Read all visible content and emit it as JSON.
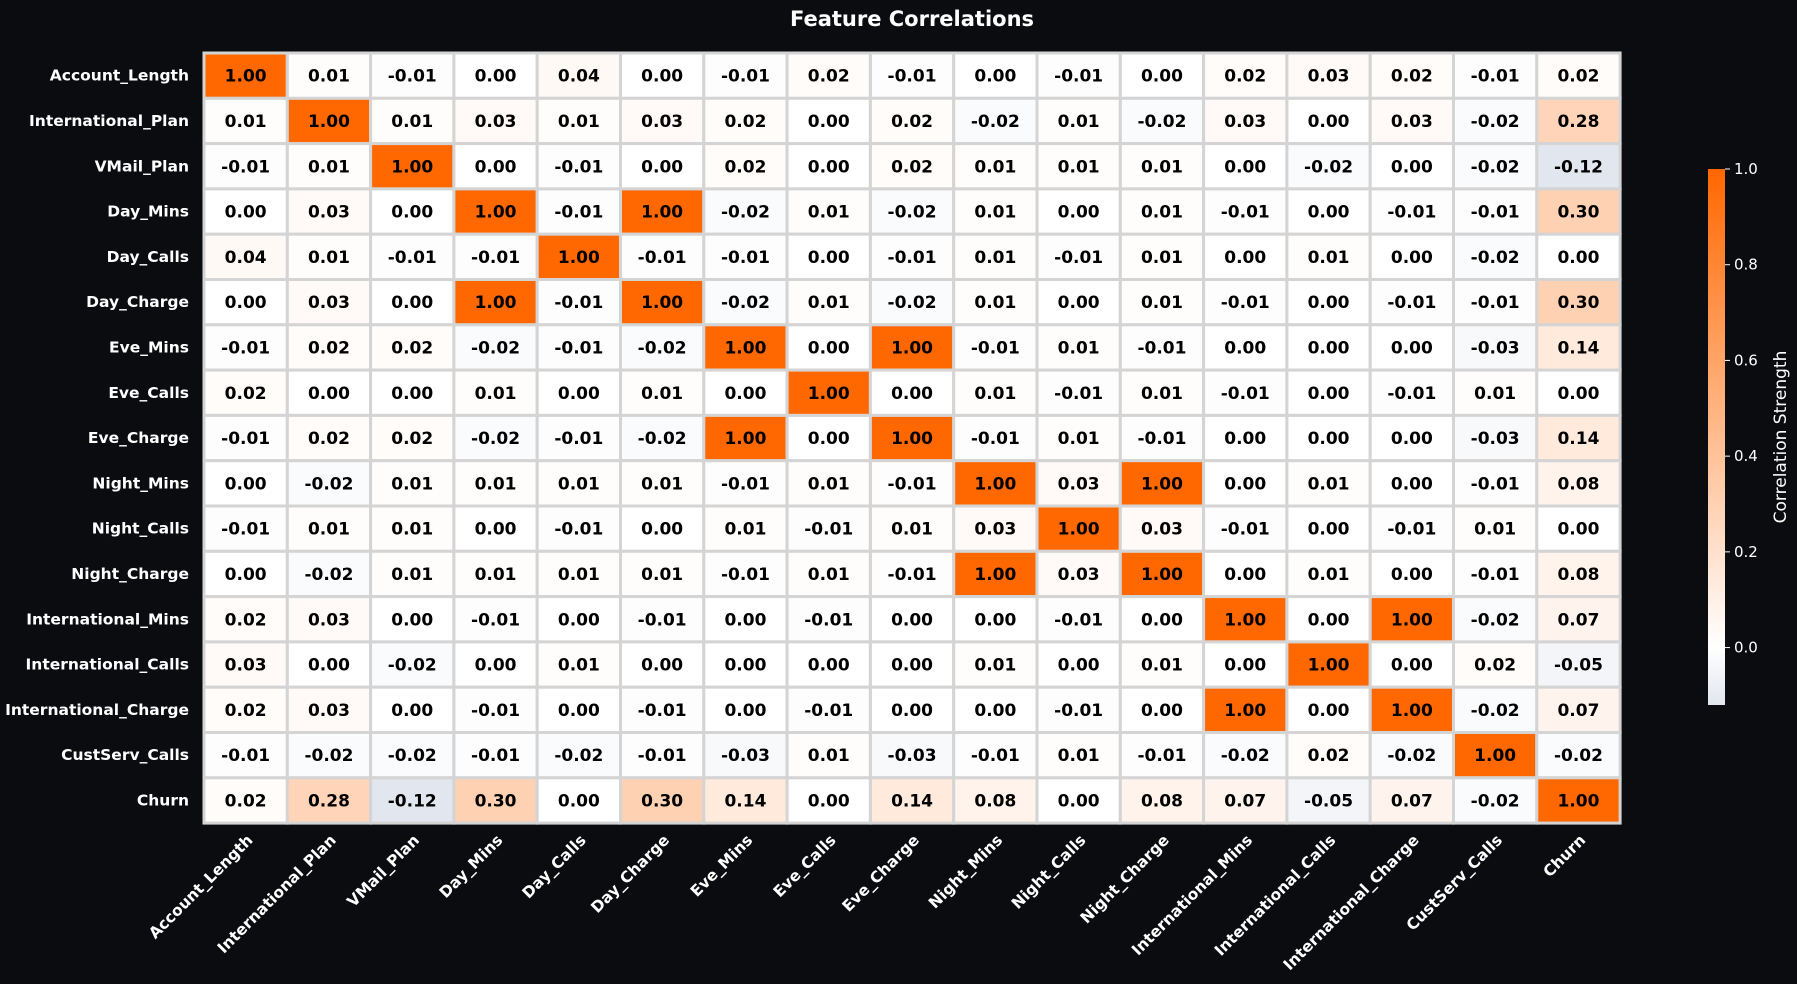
{
  "chart_data": {
    "type": "heatmap",
    "title": "Feature Correlations",
    "labels": [
      "Account_Length",
      "International_Plan",
      "VMail_Plan",
      "Day_Mins",
      "Day_Calls",
      "Day_Charge",
      "Eve_Mins",
      "Eve_Calls",
      "Eve_Charge",
      "Night_Mins",
      "Night_Calls",
      "Night_Charge",
      "International_Mins",
      "International_Calls",
      "International_Charge",
      "CustServ_Calls",
      "Churn"
    ],
    "values": [
      [
        1.0,
        0.01,
        -0.01,
        0.0,
        0.04,
        0.0,
        -0.01,
        0.02,
        -0.01,
        0.0,
        -0.01,
        0.0,
        0.02,
        0.03,
        0.02,
        -0.01,
        0.02
      ],
      [
        0.01,
        1.0,
        0.01,
        0.03,
        0.01,
        0.03,
        0.02,
        0.0,
        0.02,
        -0.02,
        0.01,
        -0.02,
        0.03,
        0.0,
        0.03,
        -0.02,
        0.28
      ],
      [
        -0.01,
        0.01,
        1.0,
        0.0,
        -0.01,
        0.0,
        0.02,
        -0.0,
        0.02,
        0.01,
        0.01,
        0.01,
        0.0,
        -0.02,
        0.0,
        -0.02,
        -0.12
      ],
      [
        0.0,
        0.03,
        0.0,
        1.0,
        -0.01,
        1.0,
        -0.02,
        0.01,
        -0.02,
        0.01,
        -0.0,
        0.01,
        -0.01,
        -0.0,
        -0.01,
        -0.01,
        0.3
      ],
      [
        0.04,
        0.01,
        -0.01,
        -0.01,
        1.0,
        -0.01,
        -0.01,
        0.0,
        -0.01,
        0.01,
        -0.01,
        0.01,
        0.0,
        0.01,
        0.0,
        -0.02,
        0.0
      ],
      [
        0.0,
        0.03,
        0.0,
        1.0,
        -0.01,
        1.0,
        -0.02,
        0.01,
        -0.02,
        0.01,
        -0.0,
        0.01,
        -0.01,
        -0.0,
        -0.01,
        -0.01,
        0.3
      ],
      [
        -0.01,
        0.02,
        0.02,
        -0.02,
        -0.01,
        -0.02,
        1.0,
        -0.0,
        1.0,
        -0.01,
        0.01,
        -0.01,
        -0.0,
        0.0,
        -0.0,
        -0.03,
        0.14
      ],
      [
        0.02,
        0.0,
        -0.0,
        0.01,
        0.0,
        0.01,
        -0.0,
        1.0,
        -0.0,
        0.01,
        -0.01,
        0.01,
        -0.01,
        -0.0,
        -0.01,
        0.01,
        0.0
      ],
      [
        -0.01,
        0.02,
        0.02,
        -0.02,
        -0.01,
        -0.02,
        1.0,
        -0.0,
        1.0,
        -0.01,
        0.01,
        -0.01,
        -0.0,
        0.0,
        -0.0,
        -0.03,
        0.14
      ],
      [
        0.0,
        -0.02,
        0.01,
        0.01,
        0.01,
        0.01,
        -0.01,
        0.01,
        -0.01,
        1.0,
        0.03,
        1.0,
        -0.0,
        0.01,
        -0.0,
        -0.01,
        0.08
      ],
      [
        -0.01,
        0.01,
        0.01,
        -0.0,
        -0.01,
        -0.0,
        0.01,
        -0.01,
        0.01,
        0.03,
        1.0,
        0.03,
        -0.01,
        -0.0,
        -0.01,
        0.01,
        0.0
      ],
      [
        0.0,
        -0.02,
        0.01,
        0.01,
        0.01,
        0.01,
        -0.01,
        0.01,
        -0.01,
        1.0,
        0.03,
        1.0,
        -0.0,
        0.01,
        -0.0,
        -0.01,
        0.08
      ],
      [
        0.02,
        0.03,
        0.0,
        -0.01,
        0.0,
        -0.01,
        -0.0,
        -0.01,
        -0.0,
        -0.0,
        -0.01,
        -0.0,
        1.0,
        -0.0,
        1.0,
        -0.02,
        0.07
      ],
      [
        0.03,
        0.0,
        -0.02,
        -0.0,
        0.01,
        -0.0,
        0.0,
        -0.0,
        0.0,
        0.01,
        -0.0,
        0.01,
        -0.0,
        1.0,
        -0.0,
        0.02,
        -0.05
      ],
      [
        0.02,
        0.03,
        0.0,
        -0.01,
        0.0,
        -0.01,
        -0.0,
        -0.01,
        -0.0,
        -0.0,
        -0.01,
        -0.0,
        1.0,
        -0.0,
        1.0,
        -0.02,
        0.07
      ],
      [
        -0.01,
        -0.02,
        -0.02,
        -0.01,
        -0.02,
        -0.01,
        -0.03,
        0.01,
        -0.03,
        -0.01,
        0.01,
        -0.01,
        -0.02,
        0.02,
        -0.02,
        1.0,
        -0.02
      ],
      [
        0.02,
        0.28,
        -0.12,
        0.3,
        0.0,
        0.3,
        0.14,
        0.0,
        0.14,
        0.08,
        0.0,
        0.08,
        0.07,
        -0.05,
        0.07,
        -0.02,
        1.0
      ]
    ],
    "value_format": "2 decimals",
    "colorbar": {
      "label": "Correlation Strength",
      "range": [
        -0.12,
        1.0
      ],
      "ticks": [
        0.0,
        0.2,
        0.4,
        0.6,
        0.8,
        1.0
      ],
      "tick_labels": [
        "0.0",
        "0.2",
        "0.4",
        "0.6",
        "0.8",
        "1.0"
      ],
      "placement": "right"
    },
    "colors": {
      "background": "#0a0c10",
      "low": "#e2e6ee",
      "mid": "#ffffff",
      "high": "#ff6700",
      "cell_border": "#d4d4d4"
    }
  }
}
